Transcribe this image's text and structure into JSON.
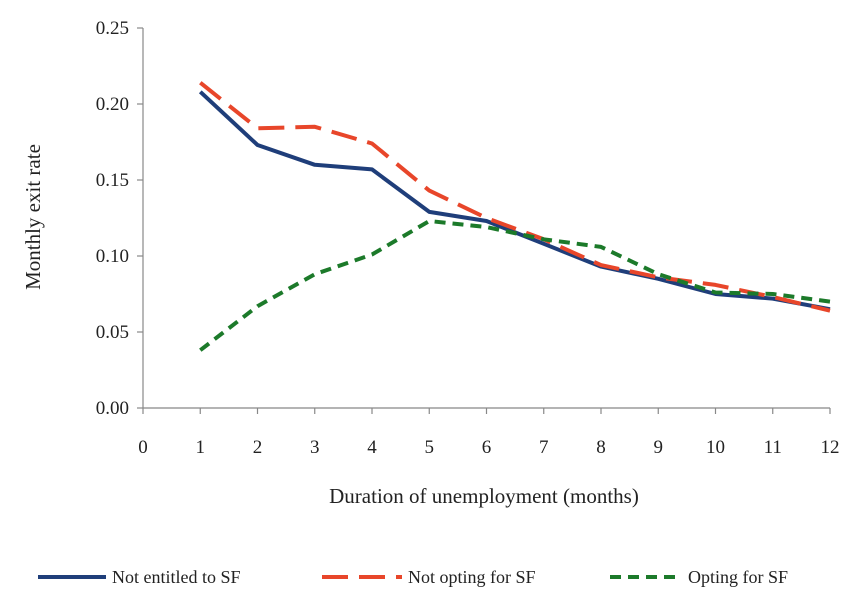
{
  "chart_data": {
    "type": "line",
    "xlabel": "Duration of unemployment (months)",
    "ylabel": "Monthly exit rate",
    "xlim": [
      0,
      12
    ],
    "ylim": [
      0,
      0.25
    ],
    "x_ticks": [
      "0",
      "1",
      "2",
      "3",
      "4",
      "5",
      "6",
      "7",
      "8",
      "9",
      "10",
      "11",
      "12"
    ],
    "y_ticks": [
      "0.00",
      "0.05",
      "0.10",
      "0.15",
      "0.20",
      "0.25"
    ],
    "grid": false,
    "legend_position": "bottom",
    "x": [
      1,
      2,
      3,
      4,
      5,
      6,
      7,
      8,
      9,
      10,
      11,
      12
    ],
    "series": [
      {
        "name": "Not entitled to SF",
        "color": "#1f3e7a",
        "style": "solid",
        "values": [
          0.208,
          0.173,
          0.16,
          0.157,
          0.129,
          0.123,
          0.108,
          0.093,
          0.085,
          0.075,
          0.072,
          0.065
        ]
      },
      {
        "name": "Not opting for SF",
        "color": "#e8462a",
        "style": "long-dash",
        "values": [
          0.214,
          0.184,
          0.185,
          0.174,
          0.143,
          0.125,
          0.111,
          0.094,
          0.086,
          0.081,
          0.073,
          0.064
        ]
      },
      {
        "name": "Opting for SF",
        "color": "#1c7a2a",
        "style": "short-dash",
        "values": [
          0.038,
          0.067,
          0.088,
          0.101,
          0.123,
          0.119,
          0.111,
          0.106,
          0.088,
          0.076,
          0.075,
          0.07
        ]
      }
    ]
  }
}
